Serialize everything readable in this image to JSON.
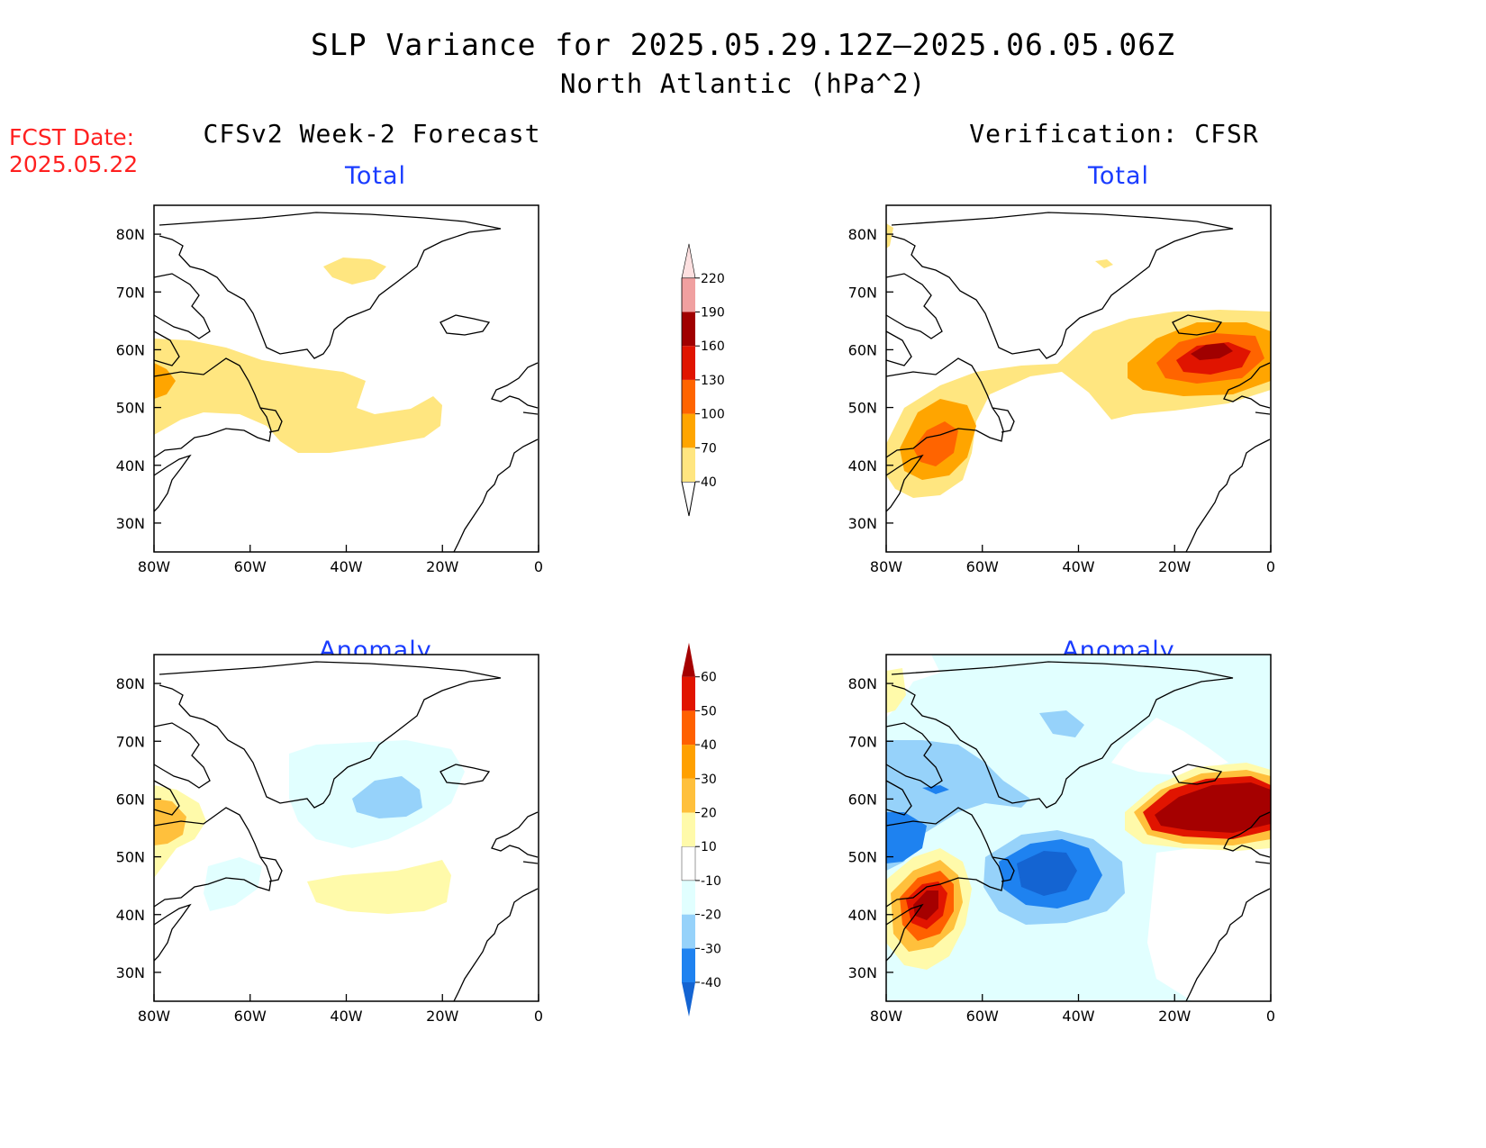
{
  "title": {
    "line1": "SLP Variance for 2025.05.29.12Z–2025.06.05.06Z",
    "line2": "North Atlantic (hPa^2)"
  },
  "fcst_date": {
    "label": "FCST Date:",
    "value": "2025.05.22"
  },
  "columns": {
    "left_title": "CFSv2 Week-2 Forecast",
    "right_title": "Verification: CFSR"
  },
  "panels": {
    "total_label": "Total",
    "anomaly_label": "Anomaly"
  },
  "axes": {
    "lon_labels": [
      "80W",
      "60W",
      "40W",
      "20W",
      "0"
    ],
    "lat_labels": [
      "80N",
      "70N",
      "60N",
      "50N",
      "40N",
      "30N"
    ]
  },
  "colorbars": {
    "total": {
      "levels": [
        "40",
        "70",
        "100",
        "130",
        "160",
        "190",
        "220"
      ],
      "colors": [
        "#ffe680",
        "#ffa500",
        "#ff6400",
        "#e01400",
        "#a00000",
        "#f0a0a0",
        "#fde0e0"
      ]
    },
    "anomaly": {
      "levels": [
        "-40",
        "-30",
        "-20",
        "-10",
        "10",
        "20",
        "30",
        "40",
        "50",
        "60"
      ],
      "colors": [
        "#1464d2",
        "#1e82f0",
        "#96d2fa",
        "#e1ffff",
        "#ffffff",
        "#fffaaa",
        "#ffc03c",
        "#ffa000",
        "#ff6000",
        "#e11400",
        "#a50000"
      ]
    }
  }
}
